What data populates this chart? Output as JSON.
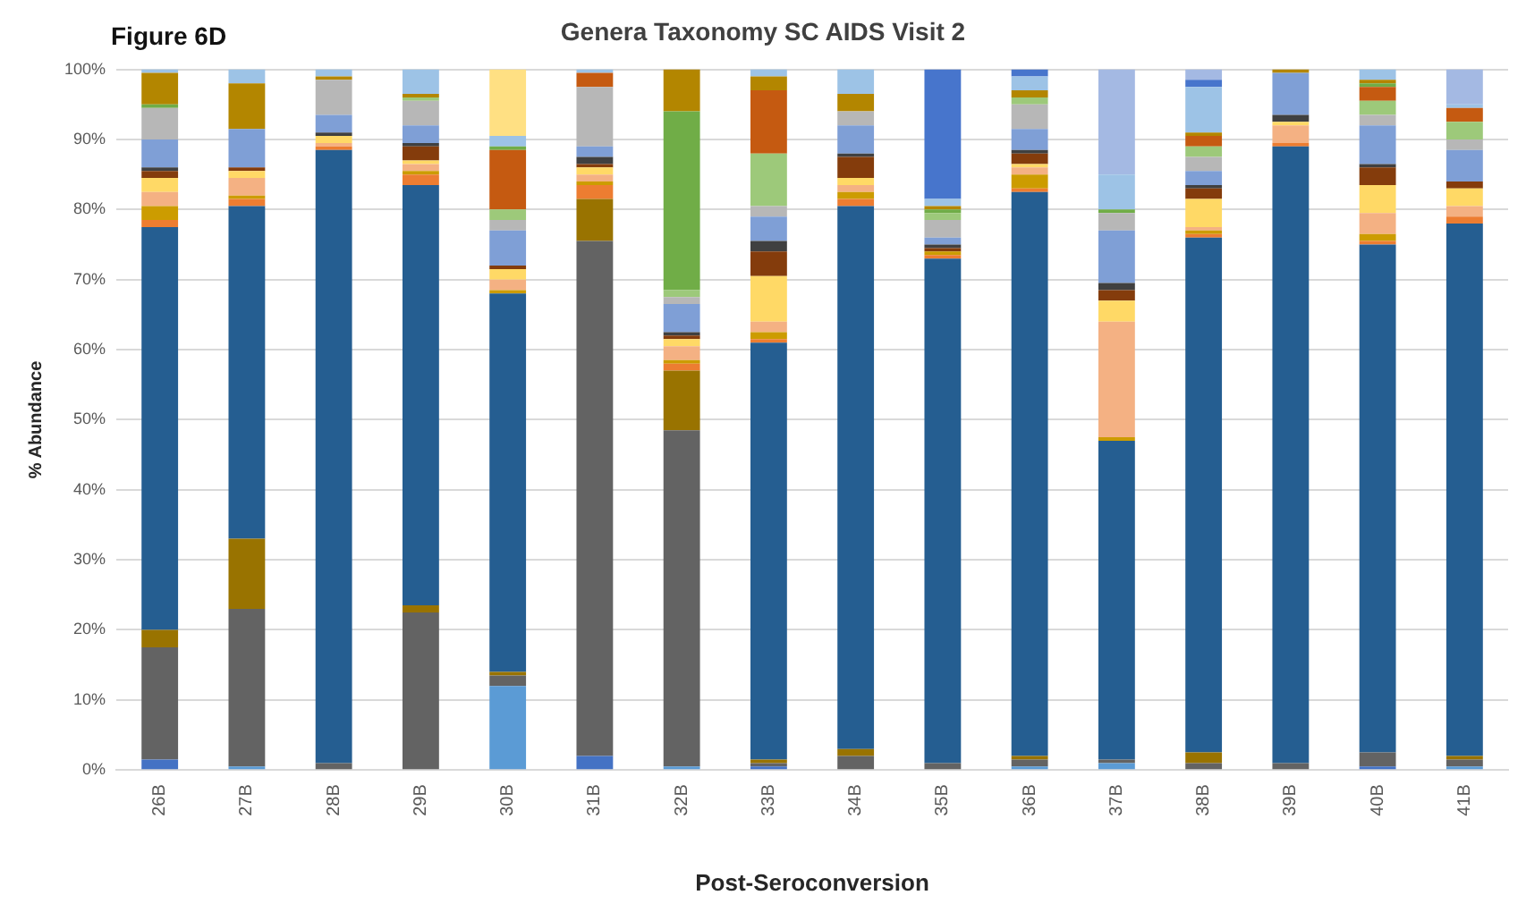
{
  "chart_data": {
    "type": "bar",
    "stacked": true,
    "title": "Genera Taxonomy SC AIDS Visit 2",
    "xlabel": "Post-Seroconversion",
    "ylabel": "% Abundance",
    "annotations": [
      "Figure 6D"
    ],
    "categories": [
      "26B",
      "27B",
      "28B",
      "29B",
      "30B",
      "31B",
      "32B",
      "33B",
      "34B",
      "35B",
      "36B",
      "37B",
      "38B",
      "39B",
      "40B",
      "41B"
    ],
    "ylim": [
      0,
      100
    ],
    "yticks": [
      {
        "value": 0,
        "label": "0%"
      },
      {
        "value": 10,
        "label": "10%"
      },
      {
        "value": 20,
        "label": "20%"
      },
      {
        "value": 30,
        "label": "30%"
      },
      {
        "value": 40,
        "label": "40%"
      },
      {
        "value": 50,
        "label": "50%"
      },
      {
        "value": 60,
        "label": "60%"
      },
      {
        "value": 70,
        "label": "70%"
      },
      {
        "value": 80,
        "label": "80%"
      },
      {
        "value": 90,
        "label": "90%"
      },
      {
        "value": 100,
        "label": "100%"
      }
    ],
    "grid": "y",
    "legend": false,
    "series": [
      {
        "color": "#4472c4",
        "values": [
          1.5,
          0,
          0,
          0,
          0,
          2,
          0,
          0.5,
          0,
          0,
          0,
          0,
          0,
          0,
          0.5,
          0
        ]
      },
      {
        "color": "#5b9bd5",
        "values": [
          0,
          0.5,
          0,
          0,
          12,
          0,
          0.5,
          0,
          0,
          0,
          0.5,
          1,
          0,
          0,
          0,
          0.5
        ]
      },
      {
        "color": "#636363",
        "values": [
          16,
          22.5,
          1,
          22.5,
          1.5,
          73.5,
          48,
          0.5,
          2,
          1,
          1,
          0.5,
          1,
          1,
          2,
          1
        ]
      },
      {
        "color": "#997300",
        "values": [
          2.5,
          10,
          0,
          1,
          0.5,
          6,
          8.5,
          0.5,
          1,
          0,
          0.5,
          0,
          1.5,
          0,
          0,
          0.5
        ]
      },
      {
        "color": "#255e91",
        "values": [
          57.5,
          47.5,
          87.5,
          60,
          54,
          0,
          0,
          59.5,
          77.5,
          72,
          80.5,
          45.5,
          73.5,
          88,
          72.5,
          76
        ]
      },
      {
        "color": "#ed7d31",
        "values": [
          1,
          1,
          0.5,
          1.5,
          0,
          2,
          1,
          0.5,
          1,
          0.5,
          0.5,
          0,
          0.5,
          0.5,
          0.5,
          1
        ]
      },
      {
        "color": "#cc9c00",
        "values": [
          2,
          0.5,
          0,
          0.5,
          0.5,
          0.5,
          0.5,
          1,
          1,
          0.5,
          2,
          0.5,
          0.5,
          0,
          1,
          0
        ]
      },
      {
        "color": "#f4b183",
        "values": [
          2,
          2.5,
          0.5,
          1,
          1.5,
          1,
          2,
          1.5,
          1,
          0,
          1,
          16.5,
          0.5,
          2.5,
          3,
          1.5
        ]
      },
      {
        "color": "#ffd966",
        "values": [
          2,
          1,
          1,
          0.5,
          1.5,
          1,
          1,
          6.5,
          1,
          0,
          0.5,
          3,
          4,
          0.5,
          4,
          2.5
        ]
      },
      {
        "color": "#843c0c",
        "values": [
          1,
          0.5,
          0,
          2,
          0.5,
          0.5,
          0.5,
          3.5,
          3,
          0.5,
          1.5,
          1.5,
          1.5,
          0,
          2.5,
          1
        ]
      },
      {
        "color": "#404040",
        "values": [
          0.5,
          0,
          0.5,
          0.5,
          0,
          1,
          0.5,
          1.5,
          0.5,
          0.5,
          0.5,
          1,
          0.5,
          1,
          0.5,
          0
        ]
      },
      {
        "color": "#7f9fd6",
        "values": [
          4,
          5.5,
          2.5,
          2.5,
          5,
          1.5,
          4,
          3.5,
          4,
          1,
          3,
          7.5,
          2,
          6,
          5.5,
          4.5
        ]
      },
      {
        "color": "#b7b7b7",
        "values": [
          4.5,
          0,
          5,
          3.5,
          1.5,
          8.5,
          1,
          1.5,
          2,
          2.5,
          3.5,
          2.5,
          2,
          0,
          1.5,
          1.5
        ]
      },
      {
        "color": "#9dc97a",
        "values": [
          0,
          0,
          0,
          0.5,
          1.5,
          0,
          1,
          7.5,
          0,
          1,
          1,
          0,
          1.5,
          0,
          2,
          2.5
        ]
      },
      {
        "color": "#c55a11",
        "values": [
          0,
          0,
          0,
          0,
          8.5,
          2,
          0,
          9,
          0,
          0,
          0,
          0,
          1.5,
          0,
          2,
          2
        ]
      },
      {
        "color": "#70ad47",
        "values": [
          0.5,
          0,
          0,
          0,
          0.5,
          0,
          25.5,
          0,
          0,
          0.5,
          0,
          0.5,
          0,
          0,
          0.5,
          0
        ]
      },
      {
        "color": "#b38600",
        "values": [
          4.5,
          6.5,
          0.5,
          0.5,
          0,
          0,
          6,
          2,
          2.5,
          0.5,
          1,
          0,
          0.5,
          0.5,
          0.5,
          0
        ]
      },
      {
        "color": "#9dc3e6",
        "values": [
          0.5,
          2,
          1,
          3.5,
          1.5,
          0.5,
          0,
          1,
          3.5,
          1,
          2,
          5,
          6.5,
          0,
          1.5,
          0.5
        ]
      },
      {
        "color": "#ffe083",
        "values": [
          0,
          0,
          0,
          0,
          9.5,
          0,
          0,
          0,
          0,
          0,
          0,
          0,
          0,
          0,
          0,
          0
        ]
      },
      {
        "color": "#4775cc",
        "values": [
          0,
          0,
          0,
          0,
          0,
          0,
          0,
          0,
          0,
          18.5,
          1,
          0,
          1,
          0,
          0,
          0
        ]
      },
      {
        "color": "#a4b9e3",
        "values": [
          0,
          0,
          0,
          0,
          0,
          0,
          0,
          0,
          0,
          0,
          0,
          15,
          1.5,
          0,
          0,
          5
        ]
      }
    ]
  }
}
